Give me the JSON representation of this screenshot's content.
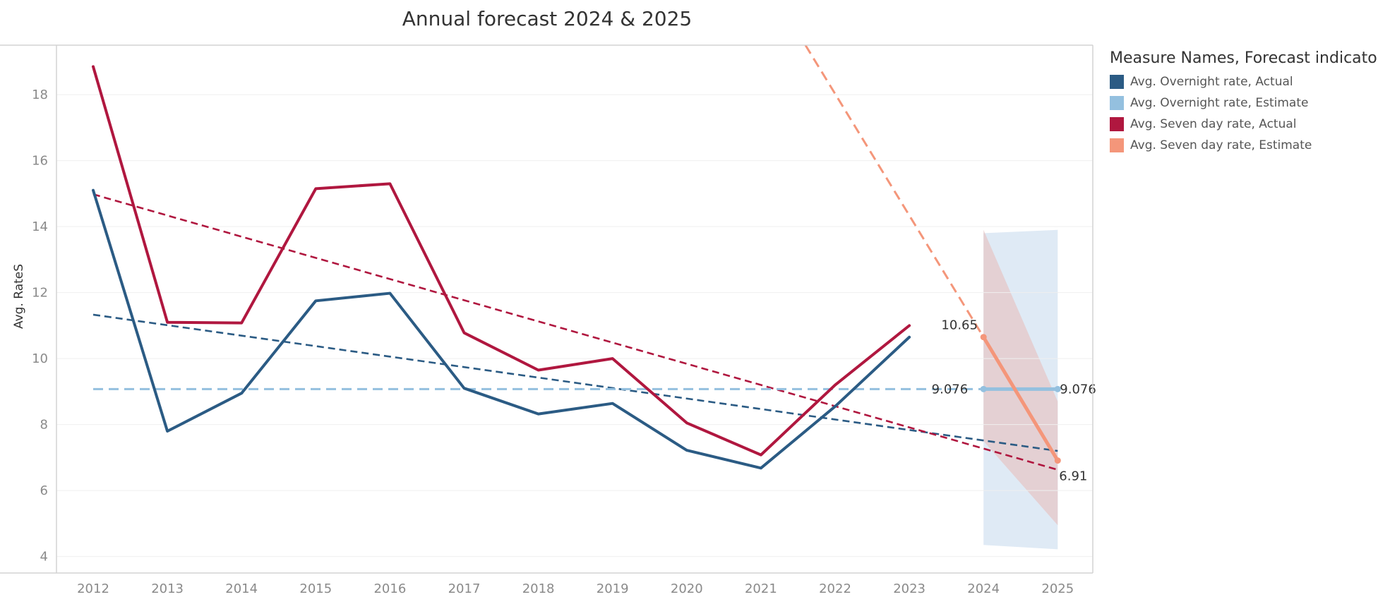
{
  "chart_data": {
    "type": "line",
    "title": "Annual forecast 2024 & 2025",
    "xlabel": "",
    "ylabel": "Avg. RateS",
    "x": [
      "2012",
      "2013",
      "2014",
      "2015",
      "2016",
      "2017",
      "2018",
      "2019",
      "2020",
      "2021",
      "2022",
      "2023",
      "2024",
      "2025"
    ],
    "ylim": [
      3.5,
      19.5
    ],
    "yticks": [
      4,
      6,
      8,
      10,
      12,
      14,
      16,
      18
    ],
    "grid": true,
    "legend_title": "Measure Names, Forecast indicator",
    "legend_position": "right",
    "series": [
      {
        "name": "Avg. Overnight rate, Actual",
        "color": "#2b5b84",
        "x": [
          "2012",
          "2013",
          "2014",
          "2015",
          "2016",
          "2017",
          "2018",
          "2019",
          "2020",
          "2021",
          "2022",
          "2023"
        ],
        "values": [
          15.1,
          7.8,
          8.95,
          11.75,
          11.98,
          9.1,
          8.32,
          8.64,
          7.22,
          6.68,
          8.55,
          10.65
        ]
      },
      {
        "name": "Avg. Overnight rate, Estimate",
        "color": "#94c0df",
        "x": [
          "2024",
          "2025"
        ],
        "values": [
          9.076,
          9.076
        ],
        "value_labels": [
          "9.076",
          "9.076"
        ]
      },
      {
        "name": "Avg. Seven day rate, Actual",
        "color": "#b0173f",
        "x": [
          "2012",
          "2013",
          "2014",
          "2015",
          "2016",
          "2017",
          "2018",
          "2019",
          "2020",
          "2021",
          "2022",
          "2023"
        ],
        "values": [
          18.85,
          11.1,
          11.08,
          15.15,
          15.3,
          10.78,
          9.65,
          10.0,
          8.05,
          7.08,
          9.2,
          11.0
        ]
      },
      {
        "name": "Avg. Seven day rate, Estimate",
        "color": "#f4967a",
        "x": [
          "2024",
          "2025"
        ],
        "values": [
          10.65,
          6.91
        ],
        "value_labels": [
          "10.65",
          "6.91"
        ]
      }
    ],
    "trend_lines": [
      {
        "series": "Avg. Overnight rate, Actual",
        "color": "#2b5b84",
        "x": [
          "2012",
          "2025"
        ],
        "values": [
          11.33,
          7.2
        ]
      },
      {
        "series": "Avg. Seven day rate, Actual",
        "color": "#b0173f",
        "x": [
          "2012",
          "2025"
        ],
        "values": [
          14.98,
          6.63
        ]
      },
      {
        "series": "Avg. Overnight rate, Estimate",
        "color": "#94c0df",
        "x": [
          "2012",
          "2025"
        ],
        "values": [
          9.076,
          9.076
        ]
      },
      {
        "series": "Avg. Seven day rate, Estimate",
        "color": "#f4967a",
        "x": [
          "2021.6",
          "2024",
          "2025"
        ],
        "values": [
          19.5,
          10.65,
          6.91
        ]
      }
    ],
    "forecast_bands": [
      {
        "series": "Avg. Overnight rate, Estimate",
        "color": "#dce8f4",
        "x": [
          "2024",
          "2025"
        ],
        "upper": [
          13.8,
          13.9
        ],
        "lower": [
          4.35,
          4.22
        ]
      },
      {
        "series": "Avg. Seven day rate, Estimate",
        "color": "#e6c4c4",
        "x": [
          "2024",
          "2025"
        ],
        "upper": [
          13.9,
          8.7
        ],
        "lower": [
          7.5,
          4.95
        ]
      }
    ]
  }
}
